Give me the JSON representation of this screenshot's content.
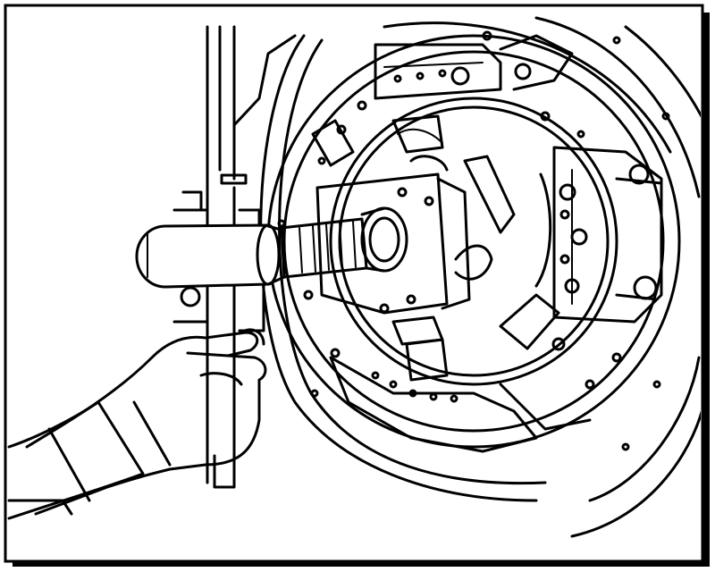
{
  "figure": {
    "stroke_color": "#000000",
    "background_color": "#ffffff",
    "shadow_color": "#000000",
    "components": [
      "outer-frame",
      "flywheel-housing",
      "clutch-pressure-plate",
      "clutch-disc",
      "alignment-tool-shaft",
      "alignment-tool-handle",
      "hand",
      "sleeve",
      "engine-block-edge"
    ]
  }
}
